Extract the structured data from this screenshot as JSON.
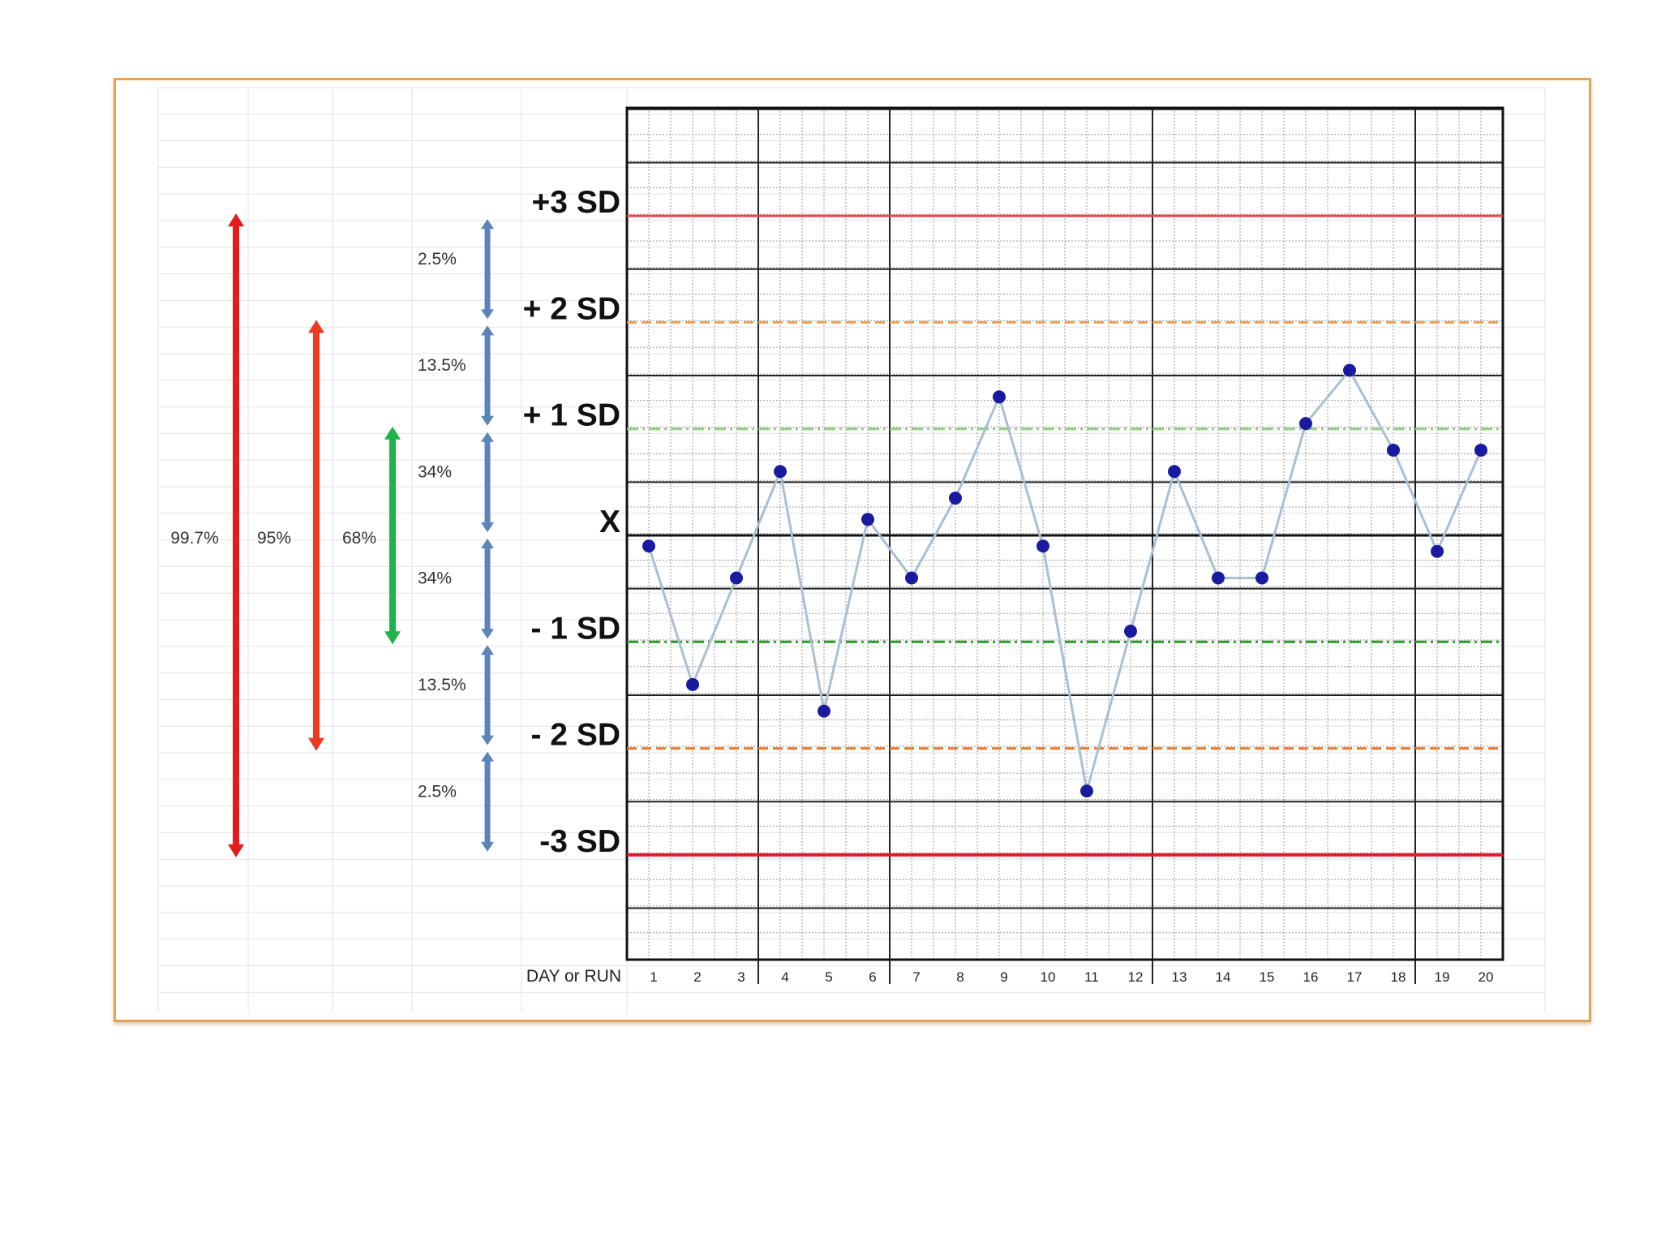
{
  "chart_data": {
    "type": "line",
    "title": "",
    "xlabel": "DAY or RUN",
    "ylabel": "",
    "x": [
      1,
      2,
      3,
      4,
      5,
      6,
      7,
      8,
      9,
      10,
      11,
      12,
      13,
      14,
      15,
      16,
      17,
      18,
      19,
      20
    ],
    "series": [
      {
        "values": [
          -0.1,
          -1.4,
          -0.4,
          0.6,
          -1.65,
          0.15,
          -0.4,
          0.35,
          1.3,
          -0.1,
          -2.4,
          -0.9,
          0.6,
          -0.4,
          -0.4,
          1.05,
          1.55,
          0.8,
          -0.15,
          0.8
        ]
      }
    ],
    "ylim": [
      -4,
      4
    ],
    "control_lines": [
      {
        "label": "+3 SD",
        "value": 3,
        "color": "#e8474b",
        "style": "solid"
      },
      {
        "label": "+ 2 SD",
        "value": 2,
        "color": "#f0a055",
        "style": "dashed"
      },
      {
        "label": "+ 1 SD",
        "value": 1,
        "color": "#8fd07d",
        "style": "dashdot"
      },
      {
        "label": "X",
        "value": 0,
        "color": "#111111",
        "style": "solid"
      },
      {
        "label": "- 1 SD",
        "value": -1,
        "color": "#2f9a2a",
        "style": "dashdot"
      },
      {
        "label": "- 2 SD",
        "value": -2,
        "color": "#f07a2b",
        "style": "dashed"
      },
      {
        "label": "-3 SD",
        "value": -3,
        "color": "#e01b2b",
        "style": "solid"
      }
    ],
    "coverage_arrows": [
      {
        "label": "99.7%",
        "from": -3,
        "to": 3,
        "color": "#e31b1b"
      },
      {
        "label": "95%",
        "from": -2,
        "to": 2,
        "color": "#ea3a22"
      },
      {
        "label": "68%",
        "from": -1,
        "to": 1,
        "color": "#22b24a"
      }
    ],
    "band_arrows": [
      {
        "label": "2.5%",
        "from": 2,
        "to": 3
      },
      {
        "label": "13.5%",
        "from": 1,
        "to": 2
      },
      {
        "label": "34%",
        "from": 0,
        "to": 1
      },
      {
        "label": "34%",
        "from": -1,
        "to": 0
      },
      {
        "label": "13.5%",
        "from": -2,
        "to": -1
      },
      {
        "label": "2.5%",
        "from": -3,
        "to": -2
      }
    ],
    "grid": true,
    "line_color": "#a9bfd2",
    "point_color": "#1a1aa0",
    "band_arrow_color": "#5b84b8"
  }
}
